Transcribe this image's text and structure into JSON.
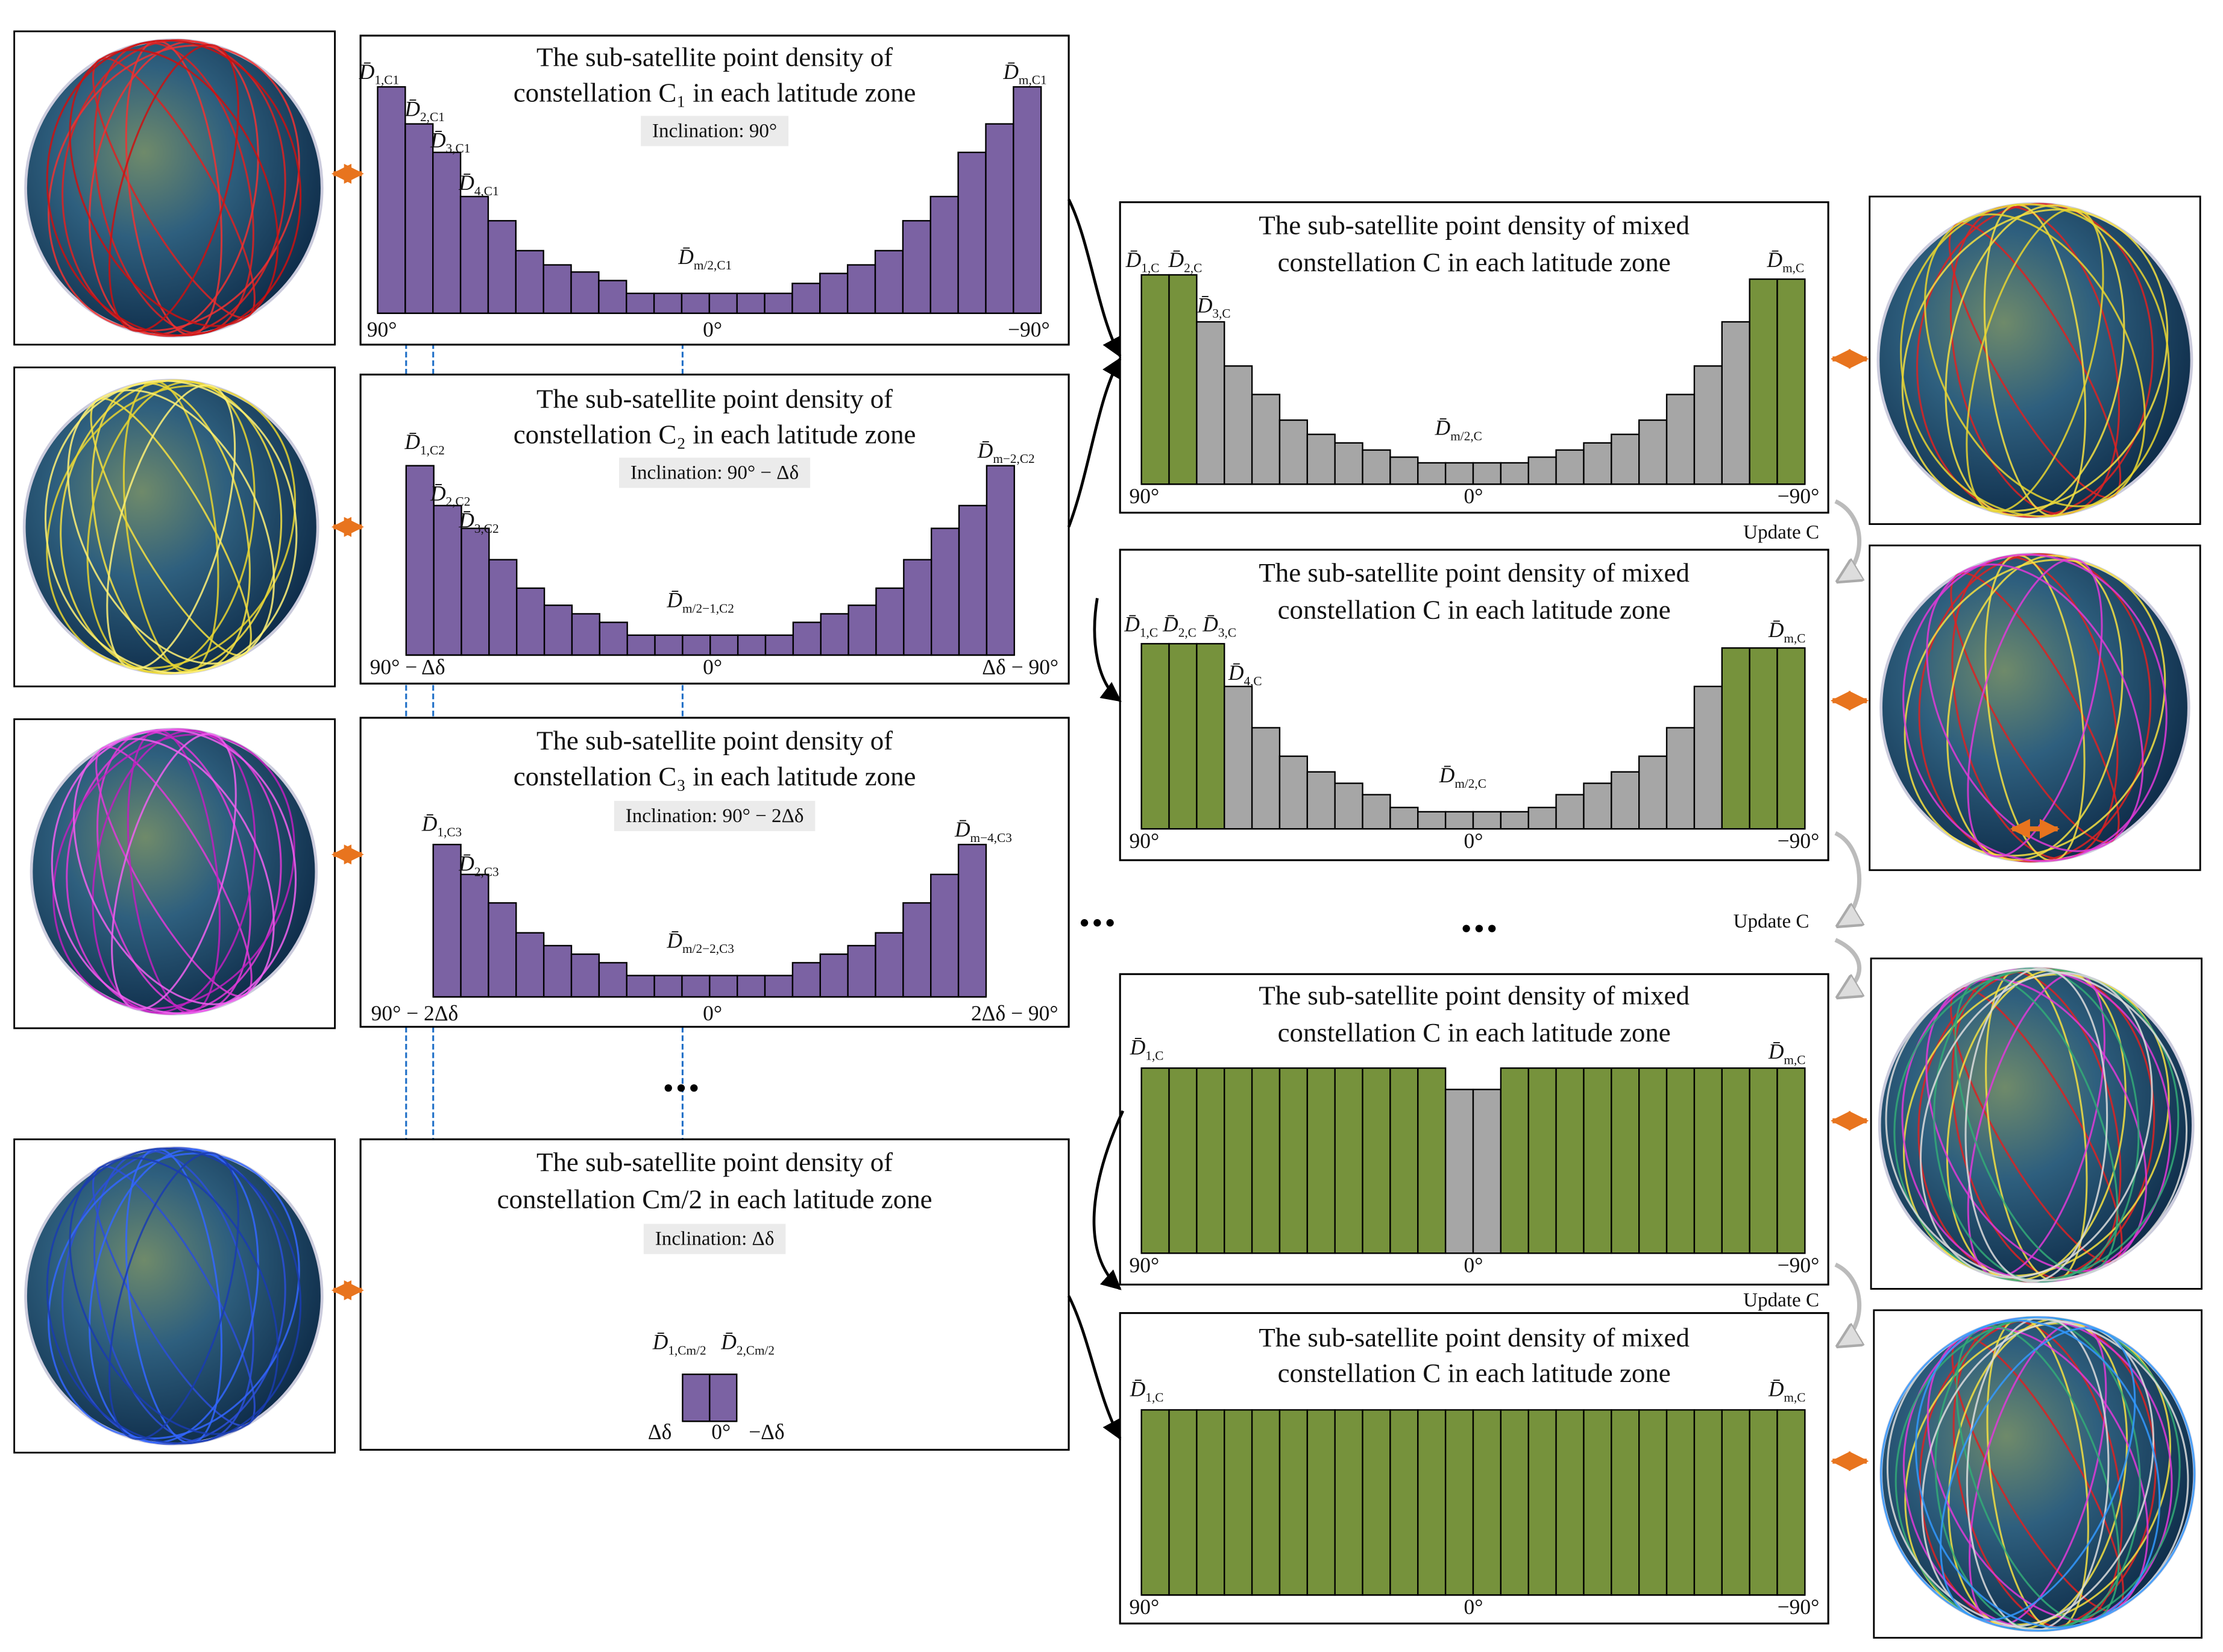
{
  "left_panels": [
    {
      "title": [
        "The sub-satellite point density of",
        "constellation C₁ in each latitude zone"
      ],
      "inclination": "Inclination: 90°",
      "bars": [
        159,
        133,
        113,
        82,
        65,
        44,
        34,
        29,
        23,
        14,
        14,
        14,
        14,
        14,
        14,
        21,
        28,
        34,
        44,
        65,
        82,
        113,
        133,
        159
      ],
      "axis": [
        "90°",
        "0°",
        "−90°"
      ],
      "labels": [
        {
          "main": "D̄",
          "sub": "1,C1"
        },
        {
          "main": "D̄",
          "sub": "2,C1"
        },
        {
          "main": "D̄",
          "sub": "3,C1"
        },
        {
          "main": "D̄",
          "sub": "4,C1"
        },
        {
          "main": "D̄",
          "sub": "m/2,C1"
        },
        {
          "main": "D̄",
          "sub": "m,C1"
        }
      ]
    },
    {
      "title": [
        "The sub-satellite point density of",
        "constellation C₂ in each latitude zone"
      ],
      "inclination": "Inclination: 90° − Δδ",
      "bars": [
        133,
        105,
        89,
        67,
        47,
        35,
        29,
        23,
        14,
        14,
        14,
        14,
        14,
        14,
        23,
        29,
        35,
        47,
        67,
        89,
        105,
        133
      ],
      "axis": [
        "90° − Δδ",
        "0°",
        "Δδ − 90°"
      ],
      "labels": [
        {
          "main": "D̄",
          "sub": "1,C2"
        },
        {
          "main": "D̄",
          "sub": "2,C2"
        },
        {
          "main": "D̄",
          "sub": "3,C2"
        },
        {
          "main": "D̄",
          "sub": "m/2−1,C2"
        },
        {
          "main": "D̄",
          "sub": "m−2,C2"
        }
      ]
    },
    {
      "title": [
        "The sub-satellite point density of",
        "constellation C₃ in each latitude zone"
      ],
      "inclination": "Inclination: 90° − 2Δδ",
      "bars": [
        107,
        86,
        66,
        45,
        36,
        30,
        24,
        15,
        15,
        15,
        15,
        15,
        15,
        24,
        30,
        36,
        45,
        66,
        86,
        107
      ],
      "axis": [
        "90° − 2Δδ",
        "0°",
        "2Δδ − 90°"
      ],
      "labels": [
        {
          "main": "D̄",
          "sub": "1,C3"
        },
        {
          "main": "D̄",
          "sub": "2,C3"
        },
        {
          "main": "D̄",
          "sub": "m/2−2,C3"
        },
        {
          "main": "D̄",
          "sub": "m−4,C3"
        }
      ]
    },
    {
      "title": [
        "The sub-satellite point density of",
        "constellation Cm/2 in each latitude zone"
      ],
      "inclination": "Inclination: Δδ",
      "bars": [
        33,
        33
      ],
      "axis": [
        "Δδ",
        "0°",
        "−Δδ"
      ],
      "labels": [
        {
          "main": "D̄",
          "sub": "1,Cm/2"
        },
        {
          "main": "D̄",
          "sub": "2,Cm/2"
        }
      ]
    }
  ],
  "right_panels": [
    {
      "title": [
        "The sub-satellite point density of mixed",
        "constellation C in each latitude zone"
      ],
      "bars": [
        147,
        147,
        114,
        83,
        63,
        45,
        35,
        29,
        24,
        19,
        15,
        15,
        15,
        15,
        19,
        24,
        29,
        35,
        45,
        63,
        83,
        114,
        144,
        144
      ],
      "green_bars": [
        0,
        1,
        22,
        23
      ],
      "axis": [
        "90°",
        "0°",
        "−90°"
      ],
      "labels": [
        {
          "main": "D̄",
          "sub": "1,C"
        },
        {
          "main": "D̄",
          "sub": "2,C"
        },
        {
          "main": "D̄",
          "sub": "3,C"
        },
        {
          "main": "D̄",
          "sub": "m/2,C"
        },
        {
          "main": "D̄",
          "sub": "m,C"
        }
      ]
    },
    {
      "title": [
        "The sub-satellite point density of mixed",
        "constellation C in each latitude zone"
      ],
      "bars": [
        130,
        130,
        130,
        100,
        71,
        51,
        40,
        32,
        24,
        15,
        12,
        12,
        12,
        12,
        15,
        24,
        32,
        40,
        51,
        71,
        100,
        127,
        127,
        127
      ],
      "green_bars": [
        0,
        1,
        2,
        21,
        22,
        23
      ],
      "axis": [
        "90°",
        "0°",
        "−90°"
      ],
      "labels": [
        {
          "main": "D̄",
          "sub": "1,C"
        },
        {
          "main": "D̄",
          "sub": "2,C"
        },
        {
          "main": "D̄",
          "sub": "3,C"
        },
        {
          "main": "D̄",
          "sub": "4,C"
        },
        {
          "main": "D̄",
          "sub": "m/2,C"
        },
        {
          "main": "D̄",
          "sub": "m,C"
        }
      ]
    },
    {
      "title": [
        "The sub-satellite point density of mixed",
        "constellation C in each latitude zone"
      ],
      "bars": [
        130,
        130,
        130,
        130,
        130,
        130,
        130,
        130,
        130,
        130,
        130,
        115,
        115,
        130,
        130,
        130,
        130,
        130,
        130,
        130,
        130,
        130,
        130,
        130
      ],
      "green_bars": [
        0,
        1,
        2,
        3,
        4,
        5,
        6,
        7,
        8,
        9,
        10,
        13,
        14,
        15,
        16,
        17,
        18,
        19,
        20,
        21,
        22,
        23
      ],
      "axis": [
        "90°",
        "0°",
        "−90°"
      ],
      "labels": [
        {
          "main": "D̄",
          "sub": "1,C"
        },
        {
          "main": "D̄",
          "sub": "m,C"
        }
      ]
    },
    {
      "title": [
        "The sub-satellite point density of mixed",
        "constellation C in each latitude zone"
      ],
      "bars": [
        130,
        130,
        130,
        130,
        130,
        130,
        130,
        130,
        130,
        130,
        130,
        130,
        130,
        130,
        130,
        130,
        130,
        130,
        130,
        130,
        130,
        130,
        130,
        130
      ],
      "green_bars": [
        0,
        1,
        2,
        3,
        4,
        5,
        6,
        7,
        8,
        9,
        10,
        11,
        12,
        13,
        14,
        15,
        16,
        17,
        18,
        19,
        20,
        21,
        22,
        23
      ],
      "axis": [
        "90°",
        "0°",
        "−90°"
      ],
      "labels": [
        {
          "main": "D̄",
          "sub": "1,C"
        },
        {
          "main": "D̄",
          "sub": "m,C"
        }
      ]
    }
  ],
  "update_labels": [
    "Update C",
    "Update C",
    "Update C"
  ],
  "colors": {
    "single": "#7b62a3",
    "green": "#76923c",
    "gray": "#a6a6a6"
  }
}
